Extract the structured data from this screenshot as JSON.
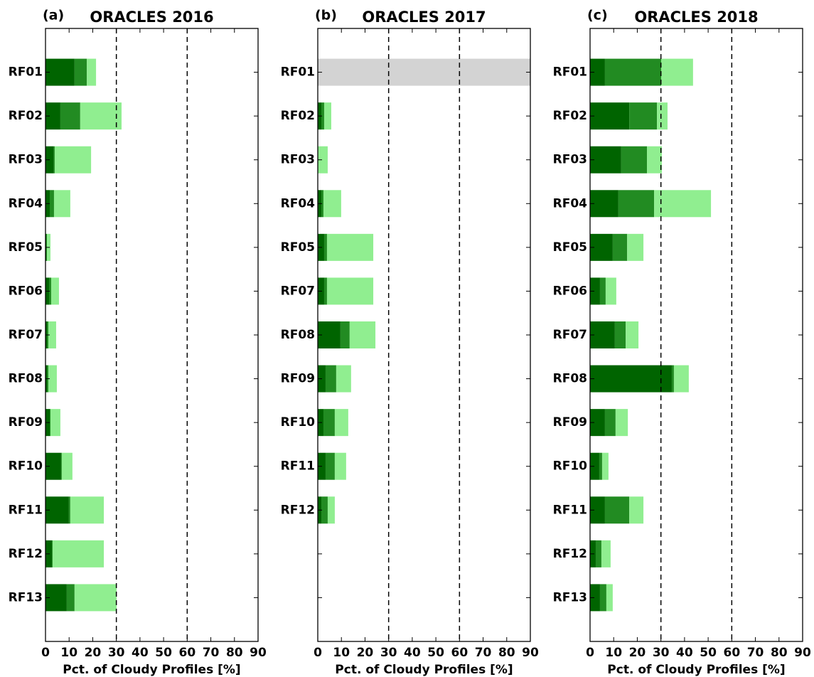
{
  "chart_data": [
    {
      "type": "bar",
      "orientation": "horizontal",
      "stacked": true,
      "panel_label": "(a)",
      "title": "ORACLES 2016",
      "categories": [
        "RF01",
        "RF02",
        "RF03",
        "RF04",
        "RF05",
        "RF06",
        "RF07",
        "RF08",
        "RF09",
        "RF10",
        "RF11",
        "RF12",
        "RF13"
      ],
      "series": [
        {
          "color": "#006400",
          "values": [
            12.3,
            6.3,
            3.5,
            1.8,
            0.3,
            1.5,
            0.6,
            0.6,
            1.8,
            6.6,
            9.9,
            2.7,
            9.0
          ]
        },
        {
          "color": "#228b22",
          "values": [
            5.2,
            8.4,
            0.4,
            1.8,
            0.3,
            0.9,
            0.6,
            0.6,
            0.3,
            0.3,
            0.6,
            0.3,
            3.3
          ]
        },
        {
          "color": "#90ee90",
          "values": [
            3.9,
            17.5,
            15.4,
            6.9,
            1.5,
            3.3,
            3.3,
            3.6,
            4.2,
            4.5,
            14.2,
            21.7,
            17.8
          ]
        }
      ],
      "xlim": [
        0,
        90
      ],
      "xticks": [
        0,
        10,
        20,
        30,
        40,
        50,
        60,
        70,
        80,
        90
      ],
      "xlabel": "Pct. of Cloudy Profiles [%]",
      "reference_lines": [
        30,
        60
      ]
    },
    {
      "type": "bar",
      "orientation": "horizontal",
      "stacked": true,
      "panel_label": "(b)",
      "title": "ORACLES 2017",
      "categories": [
        "RF01",
        "RF02",
        "RF03",
        "RF04",
        "RF05",
        "RF07",
        "RF08",
        "RF09",
        "RF10",
        "RF11",
        "RF12",
        null,
        null
      ],
      "series": [
        {
          "color": "#006400",
          "values": [
            null,
            1.5,
            0,
            1.5,
            2.7,
            2.7,
            9.6,
            3.3,
            2.4,
            3.3,
            1.5,
            null,
            null
          ]
        },
        {
          "color": "#228b22",
          "values": [
            null,
            1.2,
            0,
            0.9,
            1.2,
            1.2,
            3.9,
            4.5,
            4.8,
            3.9,
            2.7,
            null,
            null
          ]
        },
        {
          "color": "#90ee90",
          "values": [
            null,
            3.0,
            4.2,
            7.5,
            19.6,
            19.6,
            10.9,
            6.3,
            5.7,
            4.8,
            3.0,
            null,
            null
          ]
        }
      ],
      "xlim": [
        0,
        90
      ],
      "xticks": [
        0,
        10,
        20,
        30,
        40,
        50,
        60,
        70,
        80,
        90
      ],
      "xlabel": "Pct. of Cloudy Profiles [%]",
      "reference_lines": [
        30,
        60
      ]
    },
    {
      "type": "bar",
      "orientation": "horizontal",
      "stacked": true,
      "panel_label": "(c)",
      "title": "ORACLES 2018",
      "categories": [
        "RF01",
        "RF02",
        "RF03",
        "RF04",
        "RF05",
        "RF06",
        "RF07",
        "RF08",
        "RF09",
        "RF10",
        "RF11",
        "RF12",
        "RF13"
      ],
      "series": [
        {
          "color": "#006400",
          "values": [
            6.3,
            16.6,
            13.2,
            12.0,
            9.6,
            4.2,
            10.5,
            34.6,
            6.3,
            3.9,
            6.3,
            2.4,
            4.2
          ]
        },
        {
          "color": "#228b22",
          "values": [
            23.8,
            11.7,
            10.9,
            15.1,
            6.1,
            2.4,
            4.6,
            0.9,
            4.5,
            1.2,
            10.3,
            2.4,
            2.7
          ]
        },
        {
          "color": "#90ee90",
          "values": [
            13.5,
            4.5,
            6.3,
            24.1,
            6.9,
            4.5,
            5.4,
            6.3,
            5.2,
            2.7,
            6.0,
            3.9,
            2.7
          ]
        }
      ],
      "xlim": [
        0,
        90
      ],
      "xticks": [
        0,
        10,
        20,
        30,
        40,
        50,
        60,
        70,
        80,
        90
      ],
      "xlabel": "Pct. of Cloudy Profiles [%]",
      "reference_lines": [
        30,
        60
      ]
    }
  ]
}
